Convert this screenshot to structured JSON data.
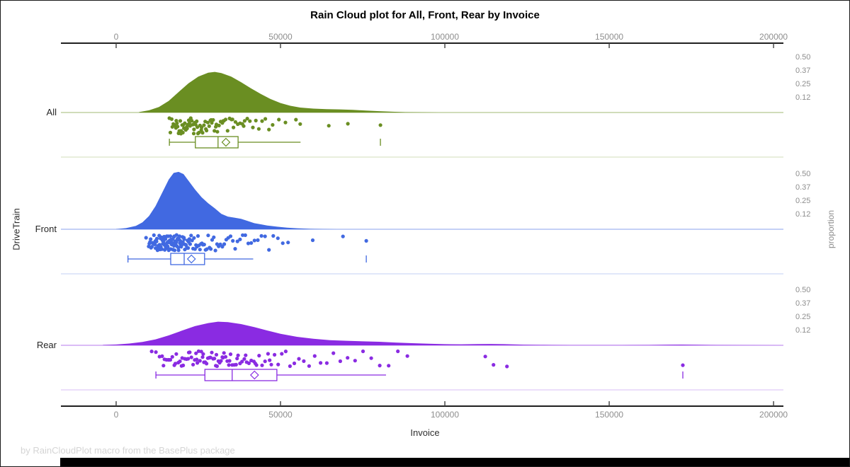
{
  "title": "Rain Cloud plot for All, Front, Rear by Invoice",
  "footer": "by RainCloudPlot macro from the BasePlus package",
  "axes": {
    "x_label": "Invoice",
    "y_left_label": "DriveTrain",
    "y_right_label": "proportion",
    "x_ticks": [
      0,
      50000,
      100000,
      150000,
      200000
    ],
    "x_range": [
      -16800,
      203000
    ]
  },
  "chart_data": {
    "type": "raincloud",
    "title": "Rain Cloud plot for All, Front, Rear by Invoice",
    "xlabel": "Invoice",
    "ylabel_left": "DriveTrain",
    "ylabel_right": "proportion",
    "x_ticks": [
      0,
      50000,
      100000,
      150000,
      200000
    ],
    "proportion_ticks": [
      0.5,
      0.37,
      0.25,
      0.12
    ],
    "groups": [
      {
        "name": "All",
        "color": "#6A8E22",
        "density": [
          [
            7000,
            0.004
          ],
          [
            10000,
            0.02
          ],
          [
            13000,
            0.05
          ],
          [
            16000,
            0.105
          ],
          [
            19000,
            0.185
          ],
          [
            22000,
            0.265
          ],
          [
            25000,
            0.325
          ],
          [
            28000,
            0.36
          ],
          [
            30000,
            0.368
          ],
          [
            32000,
            0.358
          ],
          [
            35000,
            0.325
          ],
          [
            38000,
            0.275
          ],
          [
            41000,
            0.22
          ],
          [
            44000,
            0.168
          ],
          [
            47000,
            0.122
          ],
          [
            50000,
            0.086
          ],
          [
            53000,
            0.061
          ],
          [
            56000,
            0.045
          ],
          [
            60000,
            0.035
          ],
          [
            64000,
            0.03
          ],
          [
            68000,
            0.028
          ],
          [
            72000,
            0.024
          ],
          [
            76000,
            0.018
          ],
          [
            80000,
            0.012
          ],
          [
            84000,
            0.007
          ],
          [
            88000,
            0.003
          ],
          [
            93000,
            0.001
          ],
          [
            98000,
            0
          ]
        ],
        "points": [
          16200,
          16500,
          16900,
          17100,
          17400,
          17800,
          18200,
          18300,
          18500,
          18700,
          19000,
          19200,
          19500,
          19700,
          19800,
          20100,
          20300,
          20400,
          20600,
          20900,
          21200,
          21500,
          21600,
          21800,
          22100,
          22300,
          22500,
          22700,
          23000,
          23300,
          23600,
          23700,
          23900,
          24200,
          24500,
          24700,
          24900,
          25200,
          25500,
          25900,
          26000,
          26300,
          26700,
          27100,
          27300,
          27500,
          27900,
          28300,
          28700,
          28900,
          29100,
          29500,
          29900,
          30300,
          30500,
          30800,
          31300,
          31800,
          32300,
          32600,
          32800,
          33300,
          33900,
          34500,
          35100,
          35400,
          35700,
          36300,
          37000,
          37700,
          38400,
          38800,
          39100,
          39900,
          40700,
          41600,
          42500,
          43400,
          44400,
          45400,
          46500,
          47600,
          49500,
          51500,
          54700,
          56000,
          64700,
          70500,
          80400
        ],
        "box": {
          "whisker_low": 16200,
          "q1": 24100,
          "median": 31000,
          "mean": 33400,
          "q3": 37100,
          "whisker_high": 56100,
          "outlier": 80400
        }
      },
      {
        "name": "Front",
        "color": "#4169E1",
        "density": [
          [
            0,
            0.002
          ],
          [
            3000,
            0.01
          ],
          [
            6000,
            0.03
          ],
          [
            8000,
            0.062
          ],
          [
            10000,
            0.12
          ],
          [
            12000,
            0.21
          ],
          [
            14000,
            0.33
          ],
          [
            16000,
            0.45
          ],
          [
            17500,
            0.51
          ],
          [
            19000,
            0.52
          ],
          [
            20500,
            0.5
          ],
          [
            22000,
            0.44
          ],
          [
            24000,
            0.36
          ],
          [
            26000,
            0.29
          ],
          [
            28000,
            0.235
          ],
          [
            30000,
            0.19
          ],
          [
            32000,
            0.14
          ],
          [
            34000,
            0.115
          ],
          [
            36000,
            0.105
          ],
          [
            38000,
            0.095
          ],
          [
            40000,
            0.075
          ],
          [
            42000,
            0.055
          ],
          [
            44000,
            0.045
          ],
          [
            46000,
            0.034
          ],
          [
            49000,
            0.023
          ],
          [
            52000,
            0.014
          ],
          [
            55000,
            0.009
          ],
          [
            59000,
            0.004
          ],
          [
            63000,
            0.002
          ],
          [
            67000,
            0
          ]
        ],
        "points": [
          9100,
          9900,
          10100,
          10300,
          10500,
          10600,
          10900,
          11000,
          11200,
          11400,
          11500,
          11600,
          11800,
          11900,
          12000,
          12200,
          12300,
          12400,
          12600,
          12700,
          12800,
          13000,
          13100,
          13200,
          13400,
          13500,
          13600,
          13700,
          13900,
          14000,
          14100,
          14200,
          14300,
          14400,
          14500,
          14600,
          14700,
          14800,
          14900,
          15000,
          15100,
          15200,
          15300,
          15400,
          15500,
          15600,
          15700,
          15800,
          15900,
          16000,
          16100,
          16200,
          16300,
          16400,
          16500,
          16600,
          16700,
          16800,
          16900,
          17000,
          17100,
          17200,
          17300,
          17400,
          17500,
          17600,
          17700,
          17800,
          17900,
          18000,
          18100,
          18200,
          18300,
          18400,
          18500,
          18600,
          18700,
          18900,
          19000,
          19100,
          19300,
          19400,
          19500,
          19700,
          19800,
          19900,
          20100,
          20200,
          20300,
          20500,
          20600,
          20700,
          20900,
          21100,
          21300,
          21500,
          21700,
          21900,
          22100,
          22300,
          22500,
          22800,
          23100,
          23400,
          23700,
          24000,
          24300,
          24600,
          24900,
          25200,
          25500,
          25800,
          26100,
          26400,
          26800,
          27200,
          27600,
          28000,
          28400,
          28800,
          29200,
          29700,
          30200,
          30700,
          31200,
          31700,
          32300,
          32900,
          33500,
          34100,
          34800,
          35500,
          36200,
          36900,
          37700,
          38500,
          39300,
          40200,
          41100,
          42100,
          43100,
          44200,
          45300,
          46500,
          47800,
          49200,
          50700,
          52300,
          59800,
          69000,
          76100
        ],
        "box": {
          "whisker_low": 3600,
          "q1": 16600,
          "median": 20700,
          "mean": 22900,
          "q3": 26900,
          "whisker_high": 41700,
          "outlier": 76100
        }
      },
      {
        "name": "Rear",
        "color": "#8A2BE2",
        "density": [
          [
            -4000,
            0.003
          ],
          [
            0,
            0.007
          ],
          [
            4000,
            0.016
          ],
          [
            8000,
            0.031
          ],
          [
            12000,
            0.054
          ],
          [
            16000,
            0.09
          ],
          [
            20000,
            0.133
          ],
          [
            24000,
            0.174
          ],
          [
            28000,
            0.201
          ],
          [
            31000,
            0.214
          ],
          [
            34000,
            0.21
          ],
          [
            38000,
            0.192
          ],
          [
            42000,
            0.165
          ],
          [
            46000,
            0.134
          ],
          [
            50000,
            0.104
          ],
          [
            55000,
            0.077
          ],
          [
            60000,
            0.059
          ],
          [
            65000,
            0.047
          ],
          [
            70000,
            0.041
          ],
          [
            75000,
            0.036
          ],
          [
            80000,
            0.032
          ],
          [
            85000,
            0.025
          ],
          [
            90000,
            0.019
          ],
          [
            95000,
            0.014
          ],
          [
            100000,
            0.01
          ],
          [
            105000,
            0.009
          ],
          [
            110000,
            0.011
          ],
          [
            114000,
            0.012
          ],
          [
            118000,
            0.01
          ],
          [
            124000,
            0.006
          ],
          [
            130000,
            0.004
          ],
          [
            138000,
            0.002
          ],
          [
            146000,
            0.0015
          ],
          [
            154000,
            0.002
          ],
          [
            162000,
            0.0035
          ],
          [
            168000,
            0.0055
          ],
          [
            172000,
            0.0065
          ],
          [
            177000,
            0.0045
          ],
          [
            183000,
            0.0025
          ],
          [
            189000,
            0.0012
          ],
          [
            196000,
            0.0005
          ],
          [
            203000,
            0
          ]
        ],
        "points": [
          10800,
          12100,
          13200,
          14000,
          14400,
          14700,
          15300,
          15900,
          16100,
          16500,
          17100,
          17700,
          18000,
          18300,
          18900,
          19400,
          19900,
          20100,
          20400,
          20900,
          21400,
          21900,
          22100,
          22400,
          22900,
          23400,
          23900,
          24300,
          24500,
          24700,
          25100,
          25500,
          25900,
          26300,
          26500,
          26700,
          27100,
          27500,
          27900,
          28300,
          28500,
          28700,
          29100,
          29500,
          29900,
          30300,
          30500,
          30700,
          31100,
          31500,
          31900,
          32300,
          32500,
          32800,
          33300,
          33800,
          34300,
          34500,
          34800,
          35300,
          35900,
          36500,
          36800,
          37100,
          37700,
          38300,
          39000,
          39400,
          39700,
          40400,
          41100,
          41900,
          42300,
          42700,
          43500,
          44400,
          45300,
          46200,
          46700,
          47200,
          48200,
          49300,
          50400,
          51600,
          52900,
          54200,
          55600,
          57100,
          58700,
          60400,
          62200,
          64100,
          66100,
          68200,
          70400,
          72700,
          75100,
          77600,
          80200,
          82900,
          85700,
          88600,
          112300,
          114800,
          118900,
          172400
        ],
        "box": {
          "whisker_low": 12100,
          "q1": 27000,
          "median": 35300,
          "mean": 42100,
          "q3": 48900,
          "whisker_high": 82100,
          "outlier": 172400
        }
      }
    ]
  }
}
